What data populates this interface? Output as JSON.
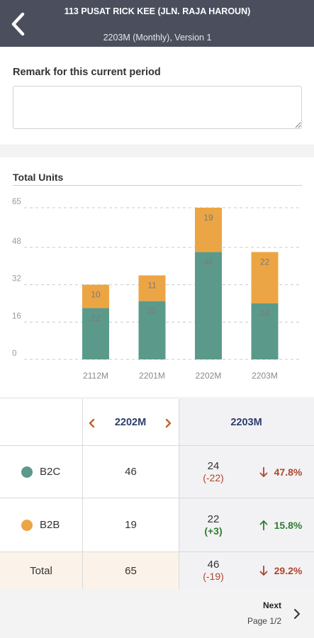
{
  "header": {
    "title": "113   PUSAT RICK KEE (JLN. RAJA HAROUN)",
    "subtitle": "2203M (Monthly), Version 1"
  },
  "remark": {
    "label": "Remark for this current period",
    "value": "",
    "placeholder": ""
  },
  "chart_data": {
    "type": "bar",
    "stacked": true,
    "title": "Total Units",
    "categories": [
      "2112M",
      "2201M",
      "2202M",
      "2203M"
    ],
    "series": [
      {
        "key": "B2C",
        "color": "#5b9a8b",
        "values": [
          22,
          25,
          46,
          24
        ]
      },
      {
        "key": "B2B",
        "color": "#eca544",
        "values": [
          10,
          11,
          19,
          22
        ]
      }
    ],
    "y_ticks": [
      0,
      16,
      32,
      48,
      65
    ],
    "ylim": [
      0,
      65
    ],
    "grid": true,
    "gridline_style": "dashed"
  },
  "table": {
    "prev_period": "2202M",
    "curr_period": "2203M",
    "rows": [
      {
        "label": "B2C",
        "color": "#5b9a8b",
        "prev": "46",
        "curr": "24",
        "delta": "(-22)",
        "direction": "down",
        "pct": "47.8%"
      },
      {
        "label": "B2B",
        "color": "#eca544",
        "prev": "19",
        "curr": "22",
        "delta": "(+3)",
        "direction": "up",
        "pct": "15.8%"
      },
      {
        "label": "Total",
        "color": "",
        "prev": "65",
        "curr": "46",
        "delta": "(-19)",
        "direction": "down",
        "pct": "29.2%"
      }
    ]
  },
  "pager": {
    "next_label": "Next",
    "page_label": "Page 1/2"
  },
  "icons": {
    "back": "chevron-left-icon",
    "prev_period": "chevron-left-icon",
    "next_period": "chevron-right-icon",
    "next_page": "chevron-right-icon"
  }
}
